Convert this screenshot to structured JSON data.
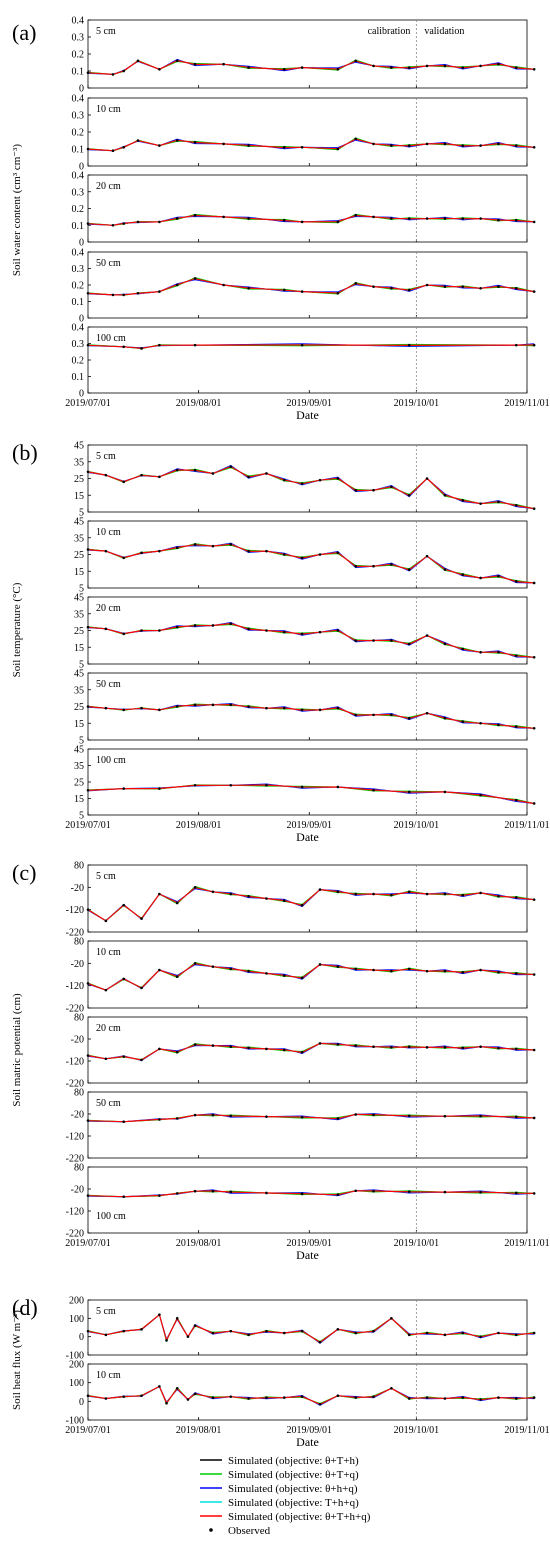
{
  "chart_data": [
    {
      "type": "line",
      "panel_label": "(a)",
      "ylabel": "Soil water content (cm³ cm⁻³)",
      "xlabel": "Date",
      "x_ticks": [
        "2019/07/01",
        "2019/08/01",
        "2019/09/01",
        "2019/10/01",
        "2019/11/01"
      ],
      "annotations": [
        "calibration",
        "validation"
      ],
      "grid": false,
      "subplots": [
        {
          "depth": "5 cm",
          "ylim": [
            0,
            0.4
          ],
          "yticks": [
            0,
            0.1,
            0.2,
            0.3,
            0.4
          ],
          "x": [
            0,
            7,
            10,
            14,
            20,
            25,
            30,
            38,
            45,
            55,
            60,
            70,
            75,
            80,
            85,
            90,
            95,
            100,
            105,
            110,
            115,
            120,
            125
          ],
          "observed": [
            0.09,
            0.08,
            0.1,
            0.16,
            0.11,
            0.16,
            0.14,
            0.14,
            0.12,
            0.11,
            0.12,
            0.11,
            0.16,
            0.13,
            0.12,
            0.12,
            0.13,
            0.13,
            0.12,
            0.13,
            0.14,
            0.12,
            0.11
          ]
        },
        {
          "depth": "10 cm",
          "ylim": [
            0,
            0.4
          ],
          "yticks": [
            0,
            0.1,
            0.2,
            0.3,
            0.4
          ],
          "x": [
            0,
            7,
            10,
            14,
            20,
            25,
            30,
            38,
            45,
            55,
            60,
            70,
            75,
            80,
            85,
            90,
            95,
            100,
            105,
            110,
            115,
            120,
            125
          ],
          "observed": [
            0.1,
            0.09,
            0.11,
            0.15,
            0.12,
            0.15,
            0.14,
            0.13,
            0.12,
            0.11,
            0.11,
            0.1,
            0.16,
            0.13,
            0.12,
            0.12,
            0.13,
            0.13,
            0.12,
            0.12,
            0.13,
            0.12,
            0.11
          ]
        },
        {
          "depth": "20 cm",
          "ylim": [
            0,
            0.4
          ],
          "yticks": [
            0,
            0.1,
            0.2,
            0.3,
            0.4
          ],
          "x": [
            0,
            7,
            10,
            14,
            20,
            25,
            30,
            38,
            45,
            55,
            60,
            70,
            75,
            80,
            85,
            90,
            95,
            100,
            105,
            110,
            115,
            120,
            125
          ],
          "observed": [
            0.11,
            0.1,
            0.11,
            0.12,
            0.12,
            0.14,
            0.16,
            0.15,
            0.14,
            0.13,
            0.12,
            0.12,
            0.16,
            0.15,
            0.14,
            0.14,
            0.14,
            0.14,
            0.14,
            0.14,
            0.13,
            0.13,
            0.12
          ]
        },
        {
          "depth": "50 cm",
          "ylim": [
            0,
            0.4
          ],
          "yticks": [
            0,
            0.1,
            0.2,
            0.3,
            0.4
          ],
          "x": [
            0,
            7,
            10,
            14,
            20,
            25,
            30,
            38,
            45,
            55,
            60,
            70,
            75,
            80,
            85,
            90,
            95,
            100,
            105,
            110,
            115,
            120,
            125
          ],
          "observed": [
            0.15,
            0.14,
            0.14,
            0.15,
            0.16,
            0.2,
            0.24,
            0.2,
            0.18,
            0.17,
            0.16,
            0.15,
            0.21,
            0.19,
            0.18,
            0.17,
            0.2,
            0.19,
            0.19,
            0.18,
            0.19,
            0.18,
            0.16
          ]
        },
        {
          "depth": "100 cm",
          "ylim": [
            0,
            0.4
          ],
          "yticks": [
            0,
            0.1,
            0.2,
            0.3,
            0.4
          ],
          "x": [
            0,
            10,
            15,
            20,
            30,
            60,
            90,
            120,
            125
          ],
          "observed": [
            0.29,
            0.28,
            0.27,
            0.29,
            0.29,
            0.29,
            0.29,
            0.29,
            0.29
          ]
        }
      ]
    },
    {
      "type": "line",
      "panel_label": "(b)",
      "ylabel": "Soil temperature (°C)",
      "xlabel": "Date",
      "x_ticks": [
        "2019/07/01",
        "2019/08/01",
        "2019/09/01",
        "2019/10/01",
        "2019/11/01"
      ],
      "grid": false,
      "subplots": [
        {
          "depth": "5 cm",
          "ylim": [
            5,
            45
          ],
          "yticks": [
            5,
            15,
            25,
            35,
            45
          ],
          "x": [
            0,
            5,
            10,
            15,
            20,
            25,
            30,
            35,
            40,
            45,
            50,
            55,
            60,
            65,
            70,
            75,
            80,
            85,
            90,
            95,
            100,
            105,
            110,
            115,
            120,
            125
          ],
          "observed": [
            29,
            27,
            23,
            27,
            26,
            30,
            30,
            28,
            32,
            26,
            28,
            24,
            22,
            24,
            25,
            18,
            18,
            20,
            15,
            25,
            15,
            12,
            10,
            11,
            9,
            7
          ]
        },
        {
          "depth": "10 cm",
          "ylim": [
            5,
            45
          ],
          "yticks": [
            5,
            15,
            25,
            35,
            45
          ],
          "x": [
            0,
            5,
            10,
            15,
            20,
            25,
            30,
            35,
            40,
            45,
            50,
            55,
            60,
            65,
            70,
            75,
            80,
            85,
            90,
            95,
            100,
            105,
            110,
            115,
            120,
            125
          ],
          "observed": [
            28,
            27,
            23,
            26,
            27,
            29,
            31,
            30,
            31,
            27,
            27,
            25,
            23,
            25,
            26,
            18,
            18,
            19,
            16,
            24,
            16,
            13,
            11,
            12,
            9,
            8
          ]
        },
        {
          "depth": "20 cm",
          "ylim": [
            5,
            45
          ],
          "yticks": [
            5,
            15,
            25,
            35,
            45
          ],
          "x": [
            0,
            5,
            10,
            15,
            20,
            25,
            30,
            35,
            40,
            45,
            50,
            55,
            60,
            65,
            70,
            75,
            80,
            85,
            90,
            95,
            100,
            105,
            110,
            115,
            120,
            125
          ],
          "observed": [
            27,
            26,
            23,
            25,
            25,
            27,
            28,
            28,
            29,
            26,
            25,
            24,
            23,
            24,
            25,
            19,
            19,
            19,
            17,
            22,
            17,
            14,
            12,
            12,
            10,
            9
          ]
        },
        {
          "depth": "50 cm",
          "ylim": [
            5,
            45
          ],
          "yticks": [
            5,
            15,
            25,
            35,
            45
          ],
          "x": [
            0,
            5,
            10,
            15,
            20,
            25,
            30,
            35,
            40,
            45,
            50,
            55,
            60,
            65,
            70,
            75,
            80,
            85,
            90,
            95,
            100,
            105,
            110,
            115,
            120,
            125
          ],
          "observed": [
            25,
            24,
            23,
            24,
            23,
            25,
            26,
            26,
            26,
            25,
            24,
            24,
            23,
            23,
            24,
            20,
            20,
            20,
            18,
            21,
            18,
            16,
            15,
            14,
            13,
            12
          ]
        },
        {
          "depth": "100 cm",
          "ylim": [
            5,
            45
          ],
          "yticks": [
            5,
            15,
            25,
            35,
            45
          ],
          "x": [
            0,
            10,
            20,
            30,
            40,
            50,
            60,
            70,
            80,
            90,
            100,
            110,
            120,
            125
          ],
          "observed": [
            20,
            21,
            21,
            23,
            23,
            23,
            22,
            22,
            20,
            19,
            19,
            17,
            14,
            12
          ]
        }
      ]
    },
    {
      "type": "line",
      "panel_label": "(c)",
      "ylabel": "Soil matric potential (cm)",
      "xlabel": "Date",
      "x_ticks": [
        "2019/07/01",
        "2019/08/01",
        "2019/09/01",
        "2019/10/01",
        "2019/11/01"
      ],
      "grid": false,
      "subplots": [
        {
          "depth": "5 cm",
          "ylim": [
            -220,
            80
          ],
          "yticks": [
            -220,
            -120,
            -20,
            80
          ],
          "x": [
            0,
            5,
            10,
            15,
            20,
            25,
            30,
            35,
            40,
            45,
            50,
            55,
            60,
            65,
            70,
            75,
            80,
            85,
            90,
            95,
            100,
            105,
            110,
            115,
            120,
            125
          ],
          "observed": [
            -120,
            -170,
            -100,
            -160,
            -50,
            -90,
            -20,
            -40,
            -50,
            -60,
            -70,
            -80,
            -100,
            -30,
            -40,
            -50,
            -50,
            -55,
            -40,
            -50,
            -50,
            -55,
            -45,
            -60,
            -65,
            -75
          ]
        },
        {
          "depth": "10 cm",
          "ylim": [
            -220,
            80
          ],
          "yticks": [
            -220,
            -120,
            -20,
            80
          ],
          "x": [
            0,
            5,
            10,
            15,
            20,
            25,
            30,
            35,
            40,
            45,
            50,
            55,
            60,
            65,
            70,
            75,
            80,
            85,
            90,
            95,
            100,
            105,
            110,
            115,
            120,
            125
          ],
          "observed": [
            -110,
            -140,
            -90,
            -130,
            -50,
            -80,
            -20,
            -35,
            -45,
            -55,
            -65,
            -75,
            -85,
            -25,
            -35,
            -45,
            -50,
            -55,
            -45,
            -55,
            -55,
            -60,
            -50,
            -60,
            -65,
            -70
          ]
        },
        {
          "depth": "20 cm",
          "ylim": [
            -220,
            80
          ],
          "yticks": [
            -220,
            -120,
            -20,
            80
          ],
          "x": [
            0,
            5,
            10,
            15,
            20,
            25,
            30,
            35,
            40,
            45,
            50,
            55,
            60,
            65,
            70,
            75,
            80,
            85,
            90,
            95,
            100,
            105,
            110,
            115,
            120,
            125
          ],
          "observed": [
            -95,
            -110,
            -100,
            -115,
            -65,
            -80,
            -45,
            -50,
            -55,
            -60,
            -65,
            -70,
            -80,
            -40,
            -45,
            -50,
            -55,
            -58,
            -55,
            -58,
            -58,
            -60,
            -55,
            -62,
            -65,
            -70
          ]
        },
        {
          "depth": "50 cm",
          "ylim": [
            -220,
            80
          ],
          "yticks": [
            -220,
            -120,
            -20,
            80
          ],
          "x": [
            0,
            10,
            20,
            25,
            30,
            35,
            40,
            50,
            60,
            70,
            75,
            80,
            90,
            100,
            110,
            120,
            125
          ],
          "observed": [
            -50,
            -55,
            -45,
            -40,
            -25,
            -25,
            -28,
            -32,
            -35,
            -40,
            -22,
            -24,
            -28,
            -30,
            -30,
            -33,
            -38
          ]
        },
        {
          "depth": "100 cm",
          "ylim": [
            -220,
            80
          ],
          "yticks": [
            -220,
            -120,
            -20,
            80
          ],
          "x": [
            0,
            10,
            20,
            25,
            30,
            35,
            40,
            50,
            60,
            70,
            75,
            80,
            90,
            100,
            110,
            120,
            125
          ],
          "observed": [
            -50,
            -55,
            -50,
            -40,
            -30,
            -30,
            -33,
            -38,
            -42,
            -45,
            -28,
            -30,
            -32,
            -34,
            -35,
            -38,
            -40
          ]
        }
      ]
    },
    {
      "type": "line",
      "panel_label": "(d)",
      "ylabel": "Soil heat flux (W m⁻²)",
      "xlabel": "Date",
      "x_ticks": [
        "2019/07/01",
        "2019/08/01",
        "2019/09/01",
        "2019/10/01",
        "2019/11/01"
      ],
      "grid": false,
      "subplots": [
        {
          "depth": "5 cm",
          "ylim": [
            -100,
            200
          ],
          "yticks": [
            -100,
            0,
            100,
            200
          ],
          "x": [
            0,
            5,
            10,
            15,
            20,
            22,
            25,
            28,
            30,
            35,
            40,
            45,
            50,
            55,
            60,
            65,
            70,
            75,
            80,
            85,
            90,
            95,
            100,
            105,
            110,
            115,
            120,
            125
          ],
          "observed": [
            30,
            10,
            30,
            40,
            120,
            -20,
            100,
            0,
            60,
            20,
            30,
            10,
            30,
            20,
            30,
            -30,
            40,
            20,
            30,
            100,
            10,
            20,
            10,
            20,
            0,
            20,
            10,
            20
          ]
        },
        {
          "depth": "10 cm",
          "ylim": [
            -100,
            200
          ],
          "yticks": [
            -100,
            0,
            100,
            200
          ],
          "x": [
            0,
            5,
            10,
            15,
            20,
            22,
            25,
            28,
            30,
            35,
            40,
            45,
            50,
            55,
            60,
            65,
            70,
            75,
            80,
            85,
            90,
            95,
            100,
            105,
            110,
            115,
            120,
            125
          ],
          "observed": [
            30,
            15,
            25,
            30,
            80,
            -10,
            70,
            10,
            40,
            20,
            25,
            15,
            20,
            20,
            25,
            -15,
            30,
            20,
            25,
            70,
            15,
            20,
            15,
            20,
            10,
            20,
            15,
            20
          ]
        }
      ]
    }
  ],
  "legend": {
    "entries": [
      {
        "label": "Simulated (objective: θ+T+h)",
        "color": "#000000",
        "kind": "line"
      },
      {
        "label": "Simulated (objective: θ+T+q)",
        "color": "#00cc00",
        "kind": "line"
      },
      {
        "label": "Simulated (objective: θ+h+q)",
        "color": "#0000ff",
        "kind": "line"
      },
      {
        "label": "Simulated (objective: T+h+q)",
        "color": "#00e0e0",
        "kind": "line"
      },
      {
        "label": "Simulated (objective: θ+T+h+q)",
        "color": "#ff0000",
        "kind": "line"
      },
      {
        "label": "Observed",
        "color": "#000000",
        "kind": "point"
      }
    ]
  },
  "colors": {
    "axis": "#000000",
    "divider": "#888888"
  }
}
